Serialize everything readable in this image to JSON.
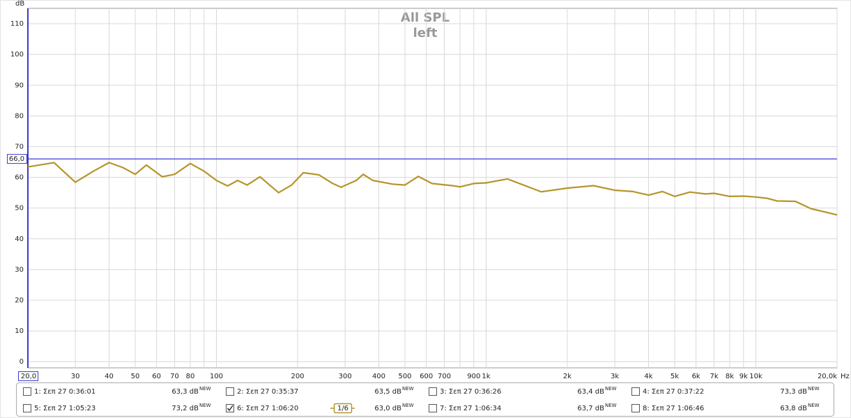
{
  "chart_data": {
    "type": "line",
    "title": "All SPL",
    "subtitle": "left",
    "y_label": "dB",
    "x_unit": "Hz",
    "xscale": "log",
    "grid": true,
    "xlim": [
      20,
      20000
    ],
    "ylim": [
      -2,
      115
    ],
    "yticks": [
      0,
      10,
      20,
      30,
      40,
      50,
      60,
      70,
      80,
      90,
      100,
      110
    ],
    "xticks": [
      {
        "value": 20,
        "label": "20,0"
      },
      30,
      40,
      50,
      60,
      70,
      80,
      100,
      200,
      300,
      400,
      500,
      600,
      700,
      900,
      {
        "value": 1000,
        "label": "1k"
      },
      {
        "value": 2000,
        "label": "2k"
      },
      {
        "value": 3000,
        "label": "3k"
      },
      {
        "value": 4000,
        "label": "4k"
      },
      {
        "value": 5000,
        "label": "5k"
      },
      {
        "value": 6000,
        "label": "6k"
      },
      {
        "value": 7000,
        "label": "7k"
      },
      {
        "value": 8000,
        "label": "8k"
      },
      {
        "value": 9000,
        "label": "9k"
      },
      {
        "value": 10000,
        "label": "10k"
      },
      {
        "value": 20000,
        "label": "20,0k"
      }
    ],
    "x_minor_grid": [
      90,
      800
    ],
    "reference_line": {
      "value": 66,
      "label": "66,0",
      "color": "#3a3ad0"
    },
    "x": [
      20,
      25,
      30,
      35,
      40,
      45,
      50,
      55,
      63,
      70,
      80,
      90,
      100,
      110,
      120,
      130,
      145,
      170,
      190,
      210,
      240,
      270,
      290,
      330,
      350,
      380,
      450,
      500,
      560,
      630,
      750,
      800,
      900,
      1000,
      1200,
      1600,
      2000,
      2500,
      3000,
      3500,
      4000,
      4500,
      5000,
      5700,
      6500,
      7000,
      8000,
      9000,
      10000,
      11000,
      12000,
      14000,
      16000,
      20000
    ],
    "series": [
      {
        "name": "6: Σεπ 27 1:06:20",
        "color": "#b5952a",
        "level": "63,0 dB",
        "smoothing": "1/6",
        "values": [
          63.4,
          64.8,
          58.4,
          62,
          64.8,
          63.2,
          61,
          64,
          60.2,
          61,
          64.5,
          62,
          59,
          57.2,
          59,
          57.5,
          60.2,
          55,
          57.5,
          61.5,
          60.8,
          58,
          56.8,
          59,
          61,
          59,
          57.8,
          57.5,
          60.3,
          58,
          57.3,
          56.9,
          58,
          58.2,
          59.5,
          55.3,
          56.5,
          57.3,
          55.8,
          55.4,
          54.2,
          55.4,
          53.8,
          55.2,
          54.6,
          54.8,
          53.8,
          53.9,
          53.6,
          53.2,
          52.3,
          52.2,
          49.8,
          47.8
        ]
      }
    ]
  },
  "legend_badge": "NEW",
  "measurements": [
    {
      "name": "1: Σεπ 27 0:36:01",
      "level": "63,3 dB",
      "color": "#c0282a",
      "checked": false
    },
    {
      "name": "2: Σεπ 27 0:35:37",
      "level": "63,5 dB",
      "color": "#2f8a22",
      "checked": false
    },
    {
      "name": "3: Σεπ 27 0:36:26",
      "level": "63,4 dB",
      "color": "#3b4fb8",
      "checked": false
    },
    {
      "name": "4: Σεπ 27 0:37:22",
      "level": "73,3 dB",
      "color": "#a0209a",
      "checked": false
    },
    {
      "name": "5: Σεπ 27 1:05:23",
      "level": "73,2 dB",
      "color": "#16858f",
      "checked": false
    },
    {
      "name": "7: Σεπ 27 1:06:34",
      "level": "63,7 dB",
      "color": "#1f9c5a",
      "checked": false
    },
    {
      "name": "8: Σεπ 27 1:06:46",
      "level": "63,8 dB",
      "color": "#7e2fc0",
      "checked": false
    }
  ]
}
